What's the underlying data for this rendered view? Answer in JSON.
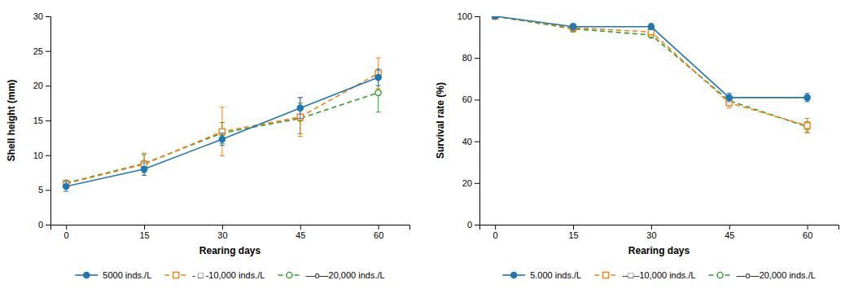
{
  "chart_data": [
    {
      "type": "line",
      "xlabel": "Rearing days",
      "ylabel": "Shell height (mm)",
      "x": [
        0,
        15,
        30,
        45,
        60
      ],
      "xlim": [
        -3,
        66
      ],
      "xticks": [
        0,
        15,
        30,
        45,
        60
      ],
      "ylim": [
        0,
        30
      ],
      "yticks": [
        0,
        5,
        10,
        15,
        20,
        25,
        30
      ],
      "grid": false,
      "legend": "bottom",
      "series": [
        {
          "name": "5000 inds./L",
          "values": [
            5.5,
            8.0,
            12.3,
            16.8,
            21.2
          ],
          "yerr": [
            0.7,
            0.9,
            0.9,
            1.5,
            1.2
          ],
          "marker": "circle",
          "line_style": "solid"
        },
        {
          "name": "- □ -10,000 inds./L",
          "values": [
            5.9,
            8.7,
            13.4,
            15.5,
            21.8
          ],
          "yerr": [
            0.4,
            1.6,
            3.5,
            2.8,
            2.2
          ],
          "marker": "square-open",
          "line_style": "dashed"
        },
        {
          "name": "—o—20,000 inds./L",
          "values": [
            6.0,
            8.8,
            13.2,
            15.3,
            19.0
          ],
          "yerr": [
            0.4,
            1.3,
            1.5,
            2.2,
            2.8
          ],
          "marker": "circle-open",
          "line_style": "dashed"
        }
      ]
    },
    {
      "type": "line",
      "xlabel": "Rearing days",
      "ylabel": "Survival rate (%)",
      "x": [
        0,
        15,
        30,
        45,
        60
      ],
      "xlim": [
        -3,
        66
      ],
      "xticks": [
        0,
        15,
        30,
        45,
        60
      ],
      "ylim": [
        0,
        100
      ],
      "yticks": [
        0,
        20,
        40,
        60,
        80,
        100
      ],
      "grid": false,
      "legend": "bottom",
      "series": [
        {
          "name": "5.000 inds./L",
          "values": [
            100,
            95.0,
            95.0,
            61.0,
            61.0
          ],
          "yerr": [
            0.0,
            1.5,
            1.5,
            2.0,
            2.0
          ],
          "marker": "circle",
          "line_style": "solid"
        },
        {
          "name": "--□--10,000 inds./L",
          "values": [
            100,
            94.5,
            92.5,
            58.5,
            47.5
          ],
          "yerr": [
            0.0,
            1.5,
            2.5,
            2.5,
            3.5
          ],
          "marker": "square-open",
          "line_style": "dashed"
        },
        {
          "name": "—o—20,000 inds./L",
          "values": [
            100,
            94.0,
            91.0,
            59.5,
            47.0
          ],
          "yerr": [
            0.0,
            1.5,
            1.5,
            2.0,
            2.5
          ],
          "marker": "circle-open",
          "line_style": "dashed"
        }
      ]
    }
  ]
}
